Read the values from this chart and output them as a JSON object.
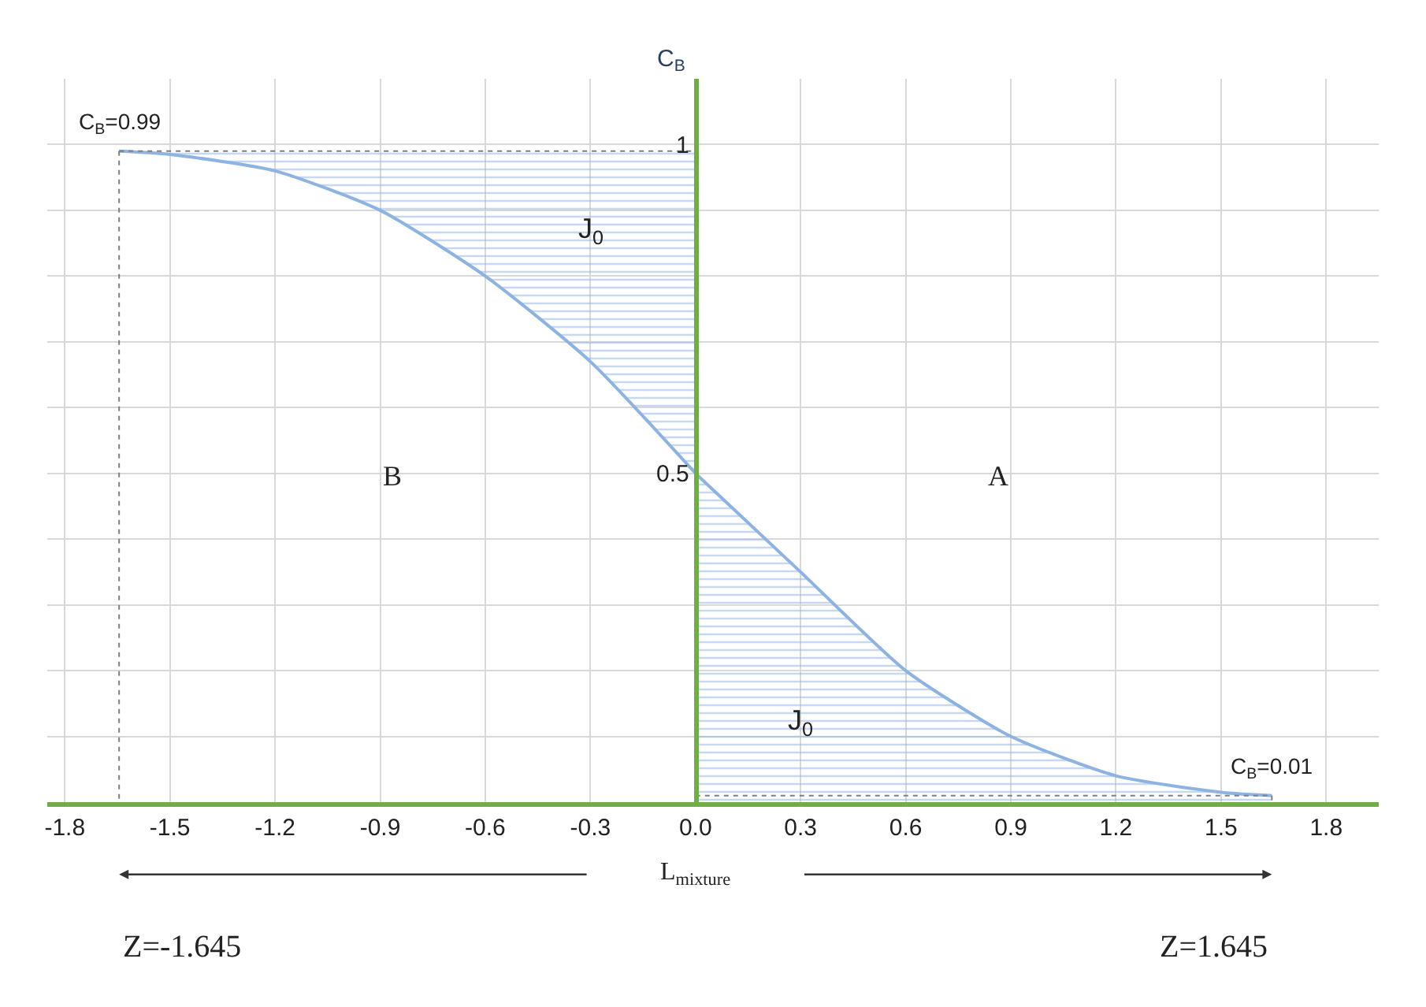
{
  "chart_data": {
    "type": "line",
    "ylabel": "C$_{B}$",
    "series": [
      {
        "color": "#8db3e2",
        "x": [
          -1.645,
          -1.5,
          -1.2,
          -0.9,
          -0.6,
          -0.3,
          0
        ],
        "values": [
          0.99,
          0.985,
          0.96,
          0.9,
          0.8,
          0.67,
          0.5
        ],
        "lower": [
          0.99,
          0.985,
          0.96,
          0.9,
          0.8,
          0.67,
          0.5
        ],
        "upper": [
          0.99,
          0.99,
          0.99,
          0.99,
          0.99,
          0.99,
          0.99
        ]
      },
      {
        "color": "#8db3e2",
        "x": [
          0,
          0.3,
          0.6,
          0.9,
          1.2,
          1.5,
          1.645
        ],
        "values": [
          0.5,
          0.35,
          0.2,
          0.1,
          0.04,
          0.015,
          0.01
        ],
        "lower": [
          0,
          0,
          0,
          0,
          0,
          0,
          0
        ],
        "upper": [
          0.5,
          0.35,
          0.2,
          0.1,
          0.04,
          0.015,
          0.01
        ]
      },
      {
        "color": "#7f7f7f",
        "line_style": "dotted",
        "x": [
          -1.645,
          0
        ],
        "values": [
          0.99,
          0.99
        ]
      },
      {
        "color": "#7f7f7f",
        "line_style": "dotted",
        "x": [
          0,
          1.645
        ],
        "values": [
          0.01,
          0.01
        ]
      },
      {
        "color": "#7f7f7f",
        "line_style": "dotted",
        "x": [
          -1.645,
          -1.645
        ],
        "values": [
          0.99,
          0
        ]
      },
      {
        "color": "#7f7f7f",
        "line_style": "dotted",
        "x": [
          1.645,
          1.645
        ],
        "values": [
          0.01,
          0
        ]
      }
    ],
    "xlim": [
      -1.85,
      1.95
    ],
    "ylim": [
      0,
      1.1
    ],
    "xticks": [
      -1.8,
      -1.5,
      -1.2,
      -0.9,
      -0.6,
      -0.3,
      {
        "value": 0,
        "label": "0.0"
      },
      0.3,
      0.6,
      0.9,
      1.2,
      1.5,
      1.8
    ],
    "yticks": [
      {
        "value": 0,
        "label": null
      },
      {
        "value": 0.1,
        "label": null
      },
      {
        "value": 0.2,
        "label": null
      },
      {
        "value": 0.3,
        "label": null
      },
      {
        "value": 0.4,
        "label": null
      },
      0.5,
      {
        "value": 0.6,
        "label": null
      },
      {
        "value": 0.7,
        "label": null
      },
      {
        "value": 0.8,
        "label": null
      },
      {
        "value": 0.9,
        "label": null
      },
      1
    ],
    "grid": true,
    "marker": "none",
    "line_style": "solid",
    "annotations": [
      {
        "text": "C$_{B}$=0.99",
        "x": -1.645,
        "y": 0.99
      },
      {
        "text": "C$_{B}$=0.01",
        "x": 1.645,
        "y": 0.01
      },
      "J$_{0}$",
      "J$_{0}$",
      "B",
      "A",
      "L$_{mixture}$",
      "Z=-1.645",
      "Z=1.645"
    ]
  }
}
